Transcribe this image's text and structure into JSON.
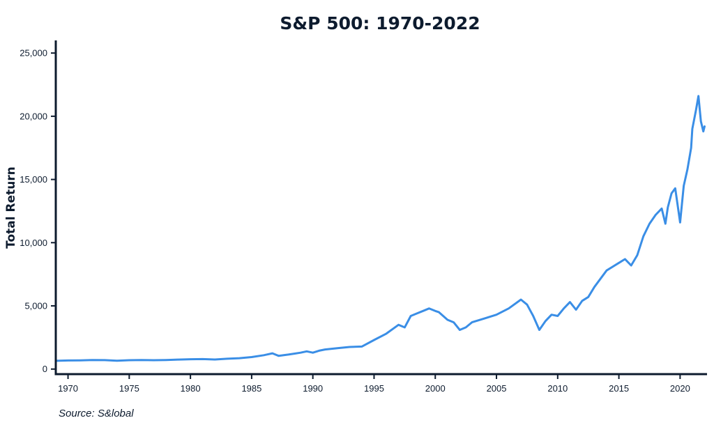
{
  "chart_data": {
    "type": "line",
    "title": "S&P 500: 1970-2022",
    "xlabel": "",
    "ylabel": "Total Return",
    "source": "Source: S&lobal",
    "xlim": [
      1969.0,
      2022.2
    ],
    "ylim": [
      -400,
      26000
    ],
    "x_ticks": [
      {
        "value": 1970,
        "label": "1970"
      },
      {
        "value": 1975,
        "label": "1975"
      },
      {
        "value": 1980,
        "label": "1980"
      },
      {
        "value": 1985,
        "label": "1985"
      },
      {
        "value": 1990,
        "label": "1990"
      },
      {
        "value": 1995,
        "label": "1995"
      },
      {
        "value": 2000,
        "label": "2000"
      },
      {
        "value": 2005,
        "label": "2005"
      },
      {
        "value": 2010,
        "label": "2010"
      },
      {
        "value": 2015,
        "label": "2015"
      },
      {
        "value": 2020,
        "label": "2020"
      }
    ],
    "y_ticks": [
      {
        "value": 0,
        "label": "0"
      },
      {
        "value": 5000,
        "label": "5,000"
      },
      {
        "value": 10000,
        "label": "10,000"
      },
      {
        "value": 15000,
        "label": "15,000"
      },
      {
        "value": 20000,
        "label": "20,000"
      },
      {
        "value": 25000,
        "label": "25,000"
      }
    ],
    "grid": false,
    "line_color": "#3a8ee6",
    "axis_color": "#0d1b2e",
    "series": [
      {
        "x": [
          1969.0,
          1970.0,
          1971.0,
          1972.0,
          1973.0,
          1974.0,
          1975.0,
          1976.0,
          1977.0,
          1978.0,
          1979.0,
          1980.0,
          1981.0,
          1982.0,
          1983.0,
          1984.0,
          1985.0,
          1986.0,
          1986.7,
          1987.2,
          1988.0,
          1989.0,
          1989.5,
          1990.0,
          1990.5,
          1991.0,
          1992.0,
          1993.0,
          1994.0,
          1995.0,
          1996.0,
          1997.0,
          1997.5,
          1998.0,
          1998.5,
          1999.0,
          1999.5,
          2000.0,
          2000.3,
          2001.0,
          2001.5,
          2002.0,
          2002.5,
          2003.0,
          2004.0,
          2005.0,
          2006.0,
          2007.0,
          2007.5,
          2008.0,
          2008.5,
          2009.0,
          2009.5,
          2010.0,
          2010.5,
          2011.0,
          2011.5,
          2012.0,
          2012.5,
          2013.0,
          2014.0,
          2015.0,
          2015.5,
          2016.0,
          2016.5,
          2017.0,
          2017.5,
          2018.0,
          2018.5,
          2018.8,
          2019.0,
          2019.3,
          2019.6,
          2020.0,
          2020.3,
          2020.6,
          2020.9,
          2021.0,
          2021.3,
          2021.5,
          2021.7,
          2021.9,
          2022.0
        ],
        "y": [
          650,
          680,
          690,
          720,
          710,
          660,
          700,
          720,
          700,
          720,
          750,
          780,
          790,
          760,
          820,
          860,
          950,
          1100,
          1250,
          1050,
          1150,
          1300,
          1400,
          1300,
          1450,
          1550,
          1650,
          1750,
          1780,
          2300,
          2800,
          3500,
          3300,
          4200,
          4400,
          4600,
          4800,
          4600,
          4500,
          3900,
          3700,
          3100,
          3300,
          3700,
          4000,
          4300,
          4800,
          5500,
          5100,
          4200,
          3100,
          3800,
          4300,
          4200,
          4800,
          5300,
          4700,
          5400,
          5700,
          6500,
          7800,
          8400,
          8700,
          8200,
          9000,
          10500,
          11500,
          12200,
          12700,
          11500,
          12800,
          13900,
          14300,
          11600,
          14500,
          15800,
          17500,
          19000,
          20500,
          21600,
          19600,
          18800,
          19200
        ]
      }
    ]
  }
}
